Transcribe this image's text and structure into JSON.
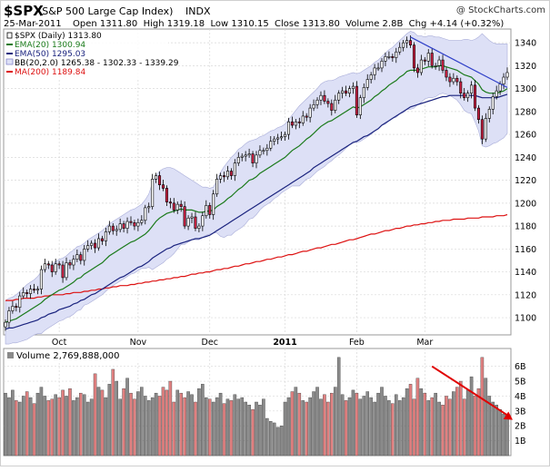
{
  "header": {
    "symbol": "$SPX",
    "name": "(S&P 500 Large Cap Index)",
    "exchange": "INDX",
    "watermark": "@ StockCharts.com",
    "date": "25-Mar-2011",
    "ohlc_line": "Open 1311.80  High 1319.18  Low 1310.15  Close 1313.80  Volume 2.8B  Chg +4.14 (+0.32%)"
  },
  "colors": {
    "up_candle": "#ffffff",
    "down_candle": "#cc2244",
    "candle_outline": "#000000",
    "ema20": "#1a7a1a",
    "ema50": "#1a237e",
    "ma200": "#dd1111",
    "bb_band": "#dde0f6",
    "trendline": "#3040c8",
    "arrow": "#e00000",
    "vol_up": "#8a8a8a",
    "vol_down": "#e08080"
  },
  "chart_data": [
    {
      "type": "candlestick",
      "name": "price",
      "legend": [
        {
          "key": "spx",
          "text": "$SPX (Daily) 1313.80",
          "color": "#000000"
        },
        {
          "key": "ema20",
          "text": "EMA(20) 1300.94",
          "color": "#1a7a1a"
        },
        {
          "key": "ema50",
          "text": "EMA(50) 1295.03",
          "color": "#1a237e"
        },
        {
          "key": "bb",
          "text": "BB(20,2.0) 1265.38 - 1302.33 - 1339.29",
          "color": "#8888cc"
        },
        {
          "key": "ma200",
          "text": "MA(200) 1189.84",
          "color": "#dd1111"
        }
      ],
      "legend_position": "top-left",
      "ylim": [
        1085,
        1352
      ],
      "y_ticks": [
        1100,
        1120,
        1140,
        1160,
        1180,
        1200,
        1220,
        1240,
        1260,
        1280,
        1300,
        1320,
        1340
      ],
      "x_ticks": [
        {
          "label": "Oct",
          "index": 15,
          "bold": false
        },
        {
          "label": "Nov",
          "index": 37,
          "bold": false
        },
        {
          "label": "Dec",
          "index": 57,
          "bold": false
        },
        {
          "label": "2011",
          "index": 78,
          "bold": true
        },
        {
          "label": "Feb",
          "index": 98,
          "bold": false
        },
        {
          "label": "Mar",
          "index": 117,
          "bold": false
        }
      ],
      "closes": [
        1096,
        1106,
        1110,
        1109,
        1119,
        1122,
        1121,
        1125,
        1124,
        1125,
        1142,
        1147,
        1146,
        1140,
        1147,
        1146,
        1135,
        1148,
        1146,
        1151,
        1155,
        1150,
        1160,
        1163,
        1165,
        1161,
        1169,
        1167,
        1175,
        1180,
        1176,
        1177,
        1182,
        1178,
        1184,
        1183,
        1180,
        1183,
        1185,
        1196,
        1197,
        1221,
        1224,
        1216,
        1213,
        1201,
        1200,
        1194,
        1199,
        1197,
        1180,
        1187,
        1188,
        1178,
        1180,
        1189,
        1198,
        1190,
        1208,
        1221,
        1224,
        1223,
        1228,
        1224,
        1235,
        1240,
        1241,
        1242,
        1243,
        1235,
        1242,
        1246,
        1246,
        1248,
        1254,
        1256,
        1257,
        1258,
        1260,
        1271,
        1268,
        1271,
        1270,
        1276,
        1275,
        1283,
        1286,
        1290,
        1294,
        1289,
        1287,
        1281,
        1290,
        1296,
        1298,
        1296,
        1300,
        1302,
        1277,
        1292,
        1301,
        1308,
        1312,
        1318,
        1318,
        1324,
        1328,
        1328,
        1327,
        1332,
        1336,
        1340,
        1342,
        1338,
        1318,
        1314,
        1325,
        1324,
        1331,
        1320,
        1320,
        1325,
        1316,
        1310,
        1306,
        1309,
        1306,
        1296,
        1292,
        1296,
        1303,
        1283,
        1273,
        1256,
        1274,
        1282,
        1293,
        1298,
        1304,
        1310,
        1314
      ],
      "ema20": [
        1096,
        1097,
        1098,
        1099,
        1101,
        1103,
        1105,
        1107,
        1109,
        1111,
        1113,
        1116,
        1118,
        1120,
        1122,
        1124,
        1125,
        1127,
        1129,
        1131,
        1134,
        1135,
        1138,
        1140,
        1142,
        1144,
        1146,
        1148,
        1151,
        1154,
        1156,
        1158,
        1160,
        1162,
        1164,
        1166,
        1167,
        1169,
        1171,
        1173,
        1176,
        1180,
        1184,
        1187,
        1189,
        1191,
        1192,
        1193,
        1194,
        1195,
        1194,
        1194,
        1194,
        1193,
        1192,
        1192,
        1193,
        1193,
        1194,
        1197,
        1199,
        1201,
        1204,
        1206,
        1209,
        1212,
        1214,
        1217,
        1220,
        1221,
        1223,
        1226,
        1228,
        1230,
        1232,
        1234,
        1236,
        1238,
        1240,
        1243,
        1246,
        1248,
        1250,
        1253,
        1256,
        1258,
        1261,
        1264,
        1267,
        1269,
        1271,
        1272,
        1274,
        1276,
        1278,
        1280,
        1282,
        1284,
        1283,
        1284,
        1286,
        1288,
        1290,
        1293,
        1295,
        1298,
        1300,
        1303,
        1305,
        1307,
        1310,
        1312,
        1315,
        1316,
        1316,
        1316,
        1317,
        1318,
        1319,
        1319,
        1319,
        1320,
        1320,
        1319,
        1318,
        1317,
        1316,
        1314,
        1312,
        1311,
        1310,
        1307,
        1304,
        1299,
        1297,
        1296,
        1296,
        1296,
        1297,
        1298,
        1300
      ],
      "ema50": [
        1090,
        1091,
        1091,
        1092,
        1093,
        1094,
        1095,
        1096,
        1097,
        1098,
        1100,
        1101,
        1103,
        1104,
        1105,
        1107,
        1108,
        1109,
        1110,
        1112,
        1113,
        1115,
        1116,
        1118,
        1120,
        1121,
        1123,
        1125,
        1127,
        1129,
        1131,
        1133,
        1135,
        1136,
        1138,
        1140,
        1142,
        1144,
        1145,
        1147,
        1149,
        1152,
        1154,
        1156,
        1158,
        1160,
        1161,
        1163,
        1164,
        1165,
        1166,
        1167,
        1168,
        1169,
        1169,
        1170,
        1171,
        1172,
        1174,
        1176,
        1178,
        1180,
        1182,
        1184,
        1186,
        1188,
        1190,
        1192,
        1194,
        1196,
        1198,
        1200,
        1202,
        1204,
        1206,
        1208,
        1210,
        1212,
        1214,
        1216,
        1218,
        1220,
        1222,
        1224,
        1226,
        1228,
        1231,
        1233,
        1235,
        1237,
        1239,
        1241,
        1243,
        1245,
        1247,
        1249,
        1251,
        1253,
        1254,
        1256,
        1258,
        1259,
        1261,
        1263,
        1265,
        1268,
        1270,
        1272,
        1274,
        1276,
        1278,
        1280,
        1282,
        1284,
        1285,
        1286,
        1287,
        1288,
        1289,
        1290,
        1291,
        1292,
        1293,
        1293,
        1294,
        1294,
        1294,
        1294,
        1294,
        1294,
        1294,
        1294,
        1293,
        1292,
        1292,
        1292,
        1292,
        1292,
        1293,
        1294,
        1295
      ],
      "ma200": [
        1115,
        1115,
        1115,
        1116,
        1116,
        1117,
        1117,
        1117,
        1117,
        1118,
        1118,
        1119,
        1119,
        1120,
        1120,
        1120,
        1120,
        1121,
        1121,
        1122,
        1122,
        1122,
        1123,
        1123,
        1124,
        1124,
        1125,
        1125,
        1126,
        1126,
        1127,
        1127,
        1128,
        1128,
        1128,
        1129,
        1129,
        1130,
        1130,
        1131,
        1131,
        1132,
        1132,
        1133,
        1133,
        1134,
        1134,
        1135,
        1135,
        1136,
        1136,
        1137,
        1138,
        1138,
        1139,
        1139,
        1140,
        1140,
        1141,
        1142,
        1142,
        1143,
        1143,
        1144,
        1145,
        1145,
        1146,
        1147,
        1147,
        1148,
        1149,
        1149,
        1150,
        1151,
        1151,
        1152,
        1153,
        1153,
        1154,
        1155,
        1155,
        1156,
        1157,
        1158,
        1158,
        1159,
        1160,
        1161,
        1161,
        1162,
        1163,
        1164,
        1164,
        1165,
        1166,
        1167,
        1168,
        1168,
        1169,
        1170,
        1171,
        1172,
        1173,
        1173,
        1174,
        1175,
        1176,
        1176,
        1177,
        1178,
        1178,
        1179,
        1180,
        1180,
        1181,
        1181,
        1182,
        1182,
        1183,
        1183,
        1184,
        1184,
        1185,
        1185,
        1185,
        1186,
        1186,
        1186,
        1186,
        1187,
        1187,
        1187,
        1187,
        1188,
        1188,
        1188,
        1188,
        1189,
        1189,
        1189,
        1190
      ],
      "bb_upper": [
        1115,
        1117,
        1118,
        1120,
        1123,
        1126,
        1129,
        1131,
        1133,
        1136,
        1140,
        1143,
        1145,
        1147,
        1149,
        1151,
        1152,
        1154,
        1157,
        1159,
        1162,
        1163,
        1165,
        1168,
        1170,
        1172,
        1174,
        1176,
        1179,
        1182,
        1184,
        1186,
        1188,
        1190,
        1192,
        1194,
        1195,
        1197,
        1199,
        1203,
        1208,
        1218,
        1224,
        1228,
        1230,
        1231,
        1231,
        1230,
        1228,
        1226,
        1224,
        1222,
        1220,
        1218,
        1216,
        1214,
        1214,
        1213,
        1214,
        1220,
        1227,
        1232,
        1236,
        1240,
        1243,
        1247,
        1249,
        1252,
        1254,
        1255,
        1256,
        1258,
        1259,
        1261,
        1263,
        1264,
        1266,
        1267,
        1269,
        1273,
        1277,
        1281,
        1285,
        1288,
        1291,
        1294,
        1297,
        1300,
        1304,
        1306,
        1307,
        1307,
        1308,
        1310,
        1311,
        1312,
        1313,
        1314,
        1313,
        1314,
        1316,
        1318,
        1320,
        1323,
        1325,
        1328,
        1331,
        1334,
        1336,
        1339,
        1342,
        1345,
        1348,
        1350,
        1349,
        1346,
        1346,
        1345,
        1346,
        1346,
        1345,
        1345,
        1344,
        1343,
        1342,
        1342,
        1342,
        1342,
        1343,
        1343,
        1342,
        1343,
        1345,
        1348,
        1345,
        1342,
        1340,
        1339,
        1339,
        1339,
        1339
      ],
      "bb_lower": [
        1077,
        1077,
        1078,
        1078,
        1079,
        1080,
        1081,
        1083,
        1085,
        1086,
        1086,
        1089,
        1091,
        1093,
        1095,
        1097,
        1098,
        1100,
        1101,
        1103,
        1106,
        1107,
        1111,
        1112,
        1114,
        1116,
        1118,
        1120,
        1123,
        1126,
        1128,
        1130,
        1132,
        1134,
        1136,
        1138,
        1139,
        1141,
        1143,
        1143,
        1144,
        1142,
        1144,
        1146,
        1148,
        1151,
        1153,
        1156,
        1160,
        1164,
        1164,
        1166,
        1168,
        1168,
        1168,
        1170,
        1172,
        1173,
        1174,
        1174,
        1171,
        1170,
        1172,
        1172,
        1175,
        1177,
        1179,
        1182,
        1186,
        1187,
        1190,
        1194,
        1197,
        1199,
        1201,
        1204,
        1206,
        1209,
        1211,
        1213,
        1215,
        1215,
        1215,
        1218,
        1221,
        1222,
        1225,
        1228,
        1230,
        1232,
        1235,
        1237,
        1240,
        1242,
        1245,
        1248,
        1251,
        1254,
        1253,
        1254,
        1256,
        1258,
        1260,
        1263,
        1265,
        1268,
        1269,
        1272,
        1274,
        1275,
        1278,
        1279,
        1282,
        1282,
        1283,
        1286,
        1288,
        1291,
        1292,
        1292,
        1293,
        1295,
        1296,
        1295,
        1294,
        1292,
        1290,
        1286,
        1281,
        1279,
        1278,
        1271,
        1263,
        1250,
        1249,
        1250,
        1252,
        1253,
        1255,
        1257,
        1261
      ],
      "trendline": {
        "from": {
          "index": 113,
          "value": 1345
        },
        "to": {
          "index": 140,
          "value": 1301
        }
      },
      "annotations": []
    },
    {
      "type": "bar",
      "name": "volume",
      "title": "Volume 2,769,888,000",
      "unit": "B",
      "ylim": [
        0,
        7.2
      ],
      "y_ticks": [
        {
          "value": 1,
          "label": "1B"
        },
        {
          "value": 2,
          "label": "2B"
        },
        {
          "value": 3,
          "label": "3B"
        },
        {
          "value": 4,
          "label": "4B"
        },
        {
          "value": 5,
          "label": "5B"
        },
        {
          "value": 6,
          "label": "6B"
        }
      ],
      "values": [
        4.2,
        3.9,
        4.4,
        3.7,
        3.6,
        4.0,
        4.3,
        3.9,
        3.5,
        4.2,
        4.6,
        4.0,
        3.7,
        3.8,
        4.1,
        3.9,
        4.4,
        4.0,
        4.5,
        3.7,
        3.9,
        4.2,
        4.1,
        3.6,
        3.8,
        5.5,
        4.6,
        4.4,
        3.9,
        4.8,
        5.8,
        5.0,
        3.8,
        4.5,
        5.2,
        4.2,
        3.8,
        4.3,
        4.6,
        4.0,
        3.7,
        3.9,
        4.2,
        4.0,
        4.6,
        4.4,
        5.0,
        3.6,
        4.4,
        4.2,
        3.9,
        4.3,
        4.1,
        3.6,
        4.5,
        4.8,
        3.9,
        3.8,
        3.6,
        3.9,
        4.2,
        3.5,
        3.8,
        3.7,
        4.1,
        3.8,
        3.9,
        3.6,
        3.4,
        3.1,
        3.6,
        3.4,
        3.8,
        2.5,
        2.3,
        2.2,
        1.9,
        2.0,
        3.6,
        3.9,
        4.3,
        4.6,
        4.2,
        3.7,
        3.6,
        3.9,
        4.3,
        4.6,
        3.8,
        4.1,
        3.6,
        4.2,
        4.6,
        6.6,
        4.1,
        3.7,
        3.9,
        4.4,
        4.2,
        3.8,
        4.0,
        4.3,
        3.9,
        3.6,
        4.2,
        4.6,
        4.0,
        3.7,
        3.5,
        4.1,
        3.7,
        3.9,
        4.5,
        4.8,
        3.8,
        5.2,
        4.5,
        4.2,
        3.7,
        3.9,
        4.2,
        3.6,
        3.4,
        4.0,
        3.8,
        4.3,
        4.6,
        5.0,
        3.8,
        4.4,
        5.3,
        4.0,
        4.5,
        6.6,
        5.2,
        4.0,
        3.6,
        3.4,
        3.1,
        2.8,
        2.8
      ]
    }
  ]
}
